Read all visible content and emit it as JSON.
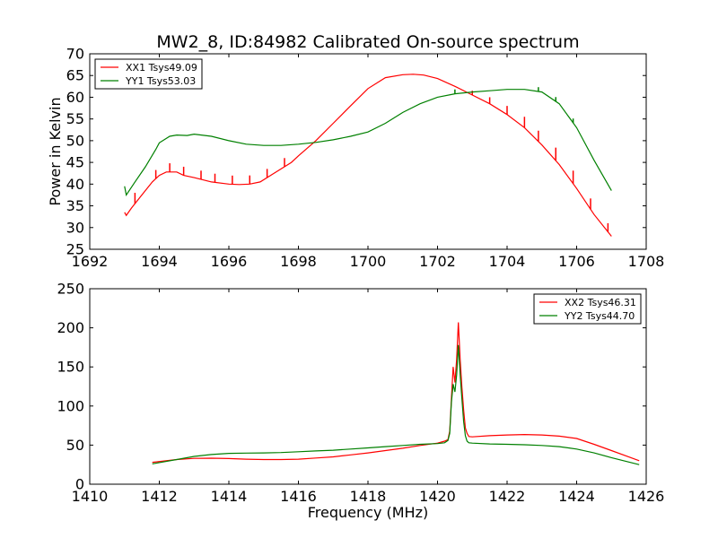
{
  "figure": {
    "title": "MW2_8, ID:84982 Calibrated On-source spectrum"
  },
  "chart_data": [
    {
      "type": "line",
      "title": "MW2_8, ID:84982 Calibrated On-source spectrum",
      "xlabel": "",
      "ylabel": "Power in Kelvin",
      "xlim": [
        1692,
        1708
      ],
      "ylim": [
        25,
        70
      ],
      "xticks": [
        1692,
        1694,
        1696,
        1698,
        1700,
        1702,
        1704,
        1706,
        1708
      ],
      "yticks": [
        25,
        30,
        35,
        40,
        45,
        50,
        55,
        60,
        65,
        70
      ],
      "grid": false,
      "legend_position": "top-left",
      "series": [
        {
          "name": "XX1 Tsys49.09",
          "color": "#ff0000",
          "x": [
            1693.0,
            1693.05,
            1693.2,
            1693.5,
            1693.8,
            1694.0,
            1694.2,
            1694.5,
            1694.7,
            1695.0,
            1695.5,
            1696.0,
            1696.3,
            1696.6,
            1696.9,
            1697.2,
            1697.5,
            1697.8,
            1698.0,
            1698.5,
            1699.0,
            1699.5,
            1700.0,
            1700.5,
            1701.0,
            1701.3,
            1701.6,
            1702.0,
            1702.5,
            1703.0,
            1703.5,
            1704.0,
            1704.5,
            1705.0,
            1705.5,
            1706.0,
            1706.5,
            1707.0
          ],
          "values": [
            33.5,
            32.8,
            34.5,
            37.5,
            40.5,
            42.0,
            42.8,
            42.8,
            42.0,
            41.5,
            40.5,
            40.0,
            39.9,
            40.0,
            40.5,
            42.0,
            43.5,
            45.0,
            46.5,
            50.0,
            54.0,
            58.0,
            62.0,
            64.5,
            65.2,
            65.3,
            65.1,
            64.3,
            62.5,
            60.5,
            58.5,
            56.0,
            53.0,
            49.0,
            44.5,
            39.0,
            33.0,
            28.0
          ],
          "spikes": [
            {
              "x": 1693.3,
              "dy": 2.5
            },
            {
              "x": 1693.9,
              "dy": 2.0
            },
            {
              "x": 1694.3,
              "dy": 2.0
            },
            {
              "x": 1694.7,
              "dy": 2.0
            },
            {
              "x": 1695.2,
              "dy": 2.0
            },
            {
              "x": 1695.6,
              "dy": 2.0
            },
            {
              "x": 1696.1,
              "dy": 2.0
            },
            {
              "x": 1696.6,
              "dy": 2.0
            },
            {
              "x": 1697.1,
              "dy": 2.0
            },
            {
              "x": 1697.6,
              "dy": 2.0
            },
            {
              "x": 1703.0,
              "dy": 1.0
            },
            {
              "x": 1703.5,
              "dy": 1.5
            },
            {
              "x": 1704.0,
              "dy": 2.0
            },
            {
              "x": 1704.5,
              "dy": 2.5
            },
            {
              "x": 1704.9,
              "dy": 2.5
            },
            {
              "x": 1705.4,
              "dy": 3.0
            },
            {
              "x": 1705.9,
              "dy": 3.0
            },
            {
              "x": 1706.4,
              "dy": 2.5
            },
            {
              "x": 1706.9,
              "dy": 2.0
            }
          ]
        },
        {
          "name": "YY1 Tsys53.03",
          "color": "#008000",
          "x": [
            1693.0,
            1693.05,
            1693.3,
            1693.6,
            1693.9,
            1694.0,
            1694.3,
            1694.5,
            1694.8,
            1695.0,
            1695.5,
            1696.0,
            1696.5,
            1697.0,
            1697.5,
            1698.0,
            1698.5,
            1699.0,
            1699.5,
            1700.0,
            1700.5,
            1701.0,
            1701.5,
            1702.0,
            1702.5,
            1703.0,
            1703.5,
            1704.0,
            1704.5,
            1705.0,
            1705.5,
            1706.0,
            1706.5,
            1707.0
          ],
          "values": [
            39.5,
            37.5,
            40.5,
            44.0,
            48.0,
            49.5,
            51.0,
            51.3,
            51.2,
            51.5,
            51.0,
            50.0,
            49.2,
            48.9,
            48.9,
            49.2,
            49.6,
            50.2,
            51.0,
            52.0,
            54.0,
            56.5,
            58.5,
            60.0,
            60.8,
            61.2,
            61.5,
            61.8,
            61.8,
            61.2,
            58.5,
            53.0,
            45.5,
            38.5
          ],
          "spikes": [
            {
              "x": 1702.5,
              "dy": 1.0
            },
            {
              "x": 1704.9,
              "dy": 1.0
            },
            {
              "x": 1705.4,
              "dy": 1.0
            },
            {
              "x": 1705.9,
              "dy": 1.0
            }
          ]
        }
      ]
    },
    {
      "type": "line",
      "title": "",
      "xlabel": "Frequency (MHz)",
      "ylabel": "",
      "xlim": [
        1410,
        1426
      ],
      "ylim": [
        0,
        250
      ],
      "xticks": [
        1410,
        1412,
        1414,
        1416,
        1418,
        1420,
        1422,
        1424,
        1426
      ],
      "yticks": [
        0,
        50,
        100,
        150,
        200,
        250
      ],
      "grid": false,
      "legend_position": "top-right",
      "series": [
        {
          "name": "XX2 Tsys46.31",
          "color": "#ff0000",
          "x": [
            1411.8,
            1412.5,
            1413.0,
            1413.5,
            1414.0,
            1414.5,
            1415.0,
            1415.5,
            1416.0,
            1416.5,
            1417.0,
            1417.5,
            1418.0,
            1418.5,
            1419.0,
            1419.5,
            1420.0,
            1420.2,
            1420.3,
            1420.35,
            1420.4,
            1420.45,
            1420.5,
            1420.55,
            1420.6,
            1420.65,
            1420.7,
            1420.75,
            1420.8,
            1420.85,
            1420.9,
            1421.0,
            1421.5,
            1422.0,
            1422.5,
            1423.0,
            1423.5,
            1424.0,
            1424.5,
            1425.0,
            1425.8
          ],
          "values": [
            28.0,
            31.5,
            33.0,
            33.2,
            32.8,
            32.0,
            31.5,
            31.5,
            32.0,
            33.5,
            35.0,
            37.5,
            40.0,
            43.0,
            46.0,
            49.5,
            52.5,
            55.0,
            57.0,
            68.0,
            110.0,
            150.0,
            130.0,
            160.0,
            207.0,
            160.0,
            125.0,
            95.0,
            72.0,
            65.0,
            61.0,
            60.5,
            62.0,
            63.0,
            63.5,
            63.0,
            61.5,
            58.5,
            51.0,
            43.0,
            30.0
          ]
        },
        {
          "name": "YY2 Tsys44.70",
          "color": "#008000",
          "x": [
            1411.8,
            1412.5,
            1413.0,
            1413.5,
            1414.0,
            1414.5,
            1415.0,
            1415.5,
            1416.0,
            1416.5,
            1417.0,
            1417.5,
            1418.0,
            1418.5,
            1419.0,
            1419.5,
            1420.0,
            1420.2,
            1420.3,
            1420.35,
            1420.4,
            1420.45,
            1420.5,
            1420.55,
            1420.6,
            1420.65,
            1420.7,
            1420.75,
            1420.8,
            1420.85,
            1420.9,
            1421.0,
            1421.5,
            1422.0,
            1422.5,
            1423.0,
            1423.5,
            1424.0,
            1424.5,
            1425.0,
            1425.8
          ],
          "values": [
            26.0,
            31.5,
            35.5,
            38.0,
            39.5,
            39.8,
            40.0,
            40.5,
            41.5,
            42.5,
            43.5,
            45.0,
            46.5,
            48.0,
            49.5,
            51.0,
            52.0,
            53.0,
            56.0,
            65.0,
            105.0,
            128.0,
            118.0,
            140.0,
            178.0,
            140.0,
            110.0,
            80.0,
            62.0,
            55.0,
            53.0,
            52.5,
            51.5,
            51.0,
            50.5,
            49.5,
            48.0,
            45.0,
            40.0,
            34.0,
            25.0
          ]
        }
      ]
    }
  ]
}
